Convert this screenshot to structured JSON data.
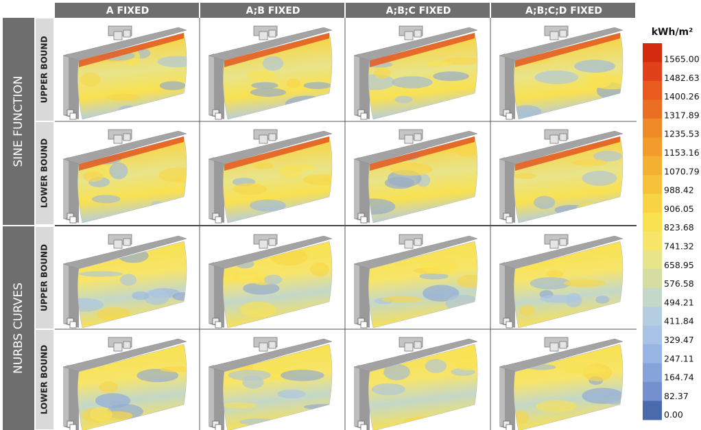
{
  "columns": [
    "A FIXED",
    "A;B FIXED",
    "A;B;C FIXED",
    "A;B;C;D FIXED"
  ],
  "row_groups": [
    {
      "label": "SINE FUNCTION",
      "rows": [
        "UPPER BOUND",
        "LOWER BOUND"
      ]
    },
    {
      "label": "NURBS CURVES",
      "rows": [
        "UPPER BOUND",
        "LOWER BOUND"
      ]
    }
  ],
  "legend": {
    "unit": "kWh/m²",
    "labels": [
      "1565.00",
      "1482.63",
      "1400.26",
      "1317.89",
      "1235.53",
      "1153.16",
      "1070.79",
      "988.42",
      "906.05",
      "823.68",
      "741.32",
      "658.95",
      "576.58",
      "494.21",
      "411.84",
      "329.47",
      "247.11",
      "164.74",
      "82.37",
      "0.00"
    ],
    "colors": [
      "#d42a0f",
      "#e0401a",
      "#e85a1e",
      "#eb6f22",
      "#ef8a28",
      "#f29d2b",
      "#f4b030",
      "#f6c23a",
      "#f8d445",
      "#f9e150",
      "#f7e56a",
      "#e8e48a",
      "#d5dea0",
      "#c4d8c9",
      "#b5cde0",
      "#a8c3e6",
      "#98b4e3",
      "#87a3db",
      "#7490cf",
      "#4a6aab"
    ]
  }
}
